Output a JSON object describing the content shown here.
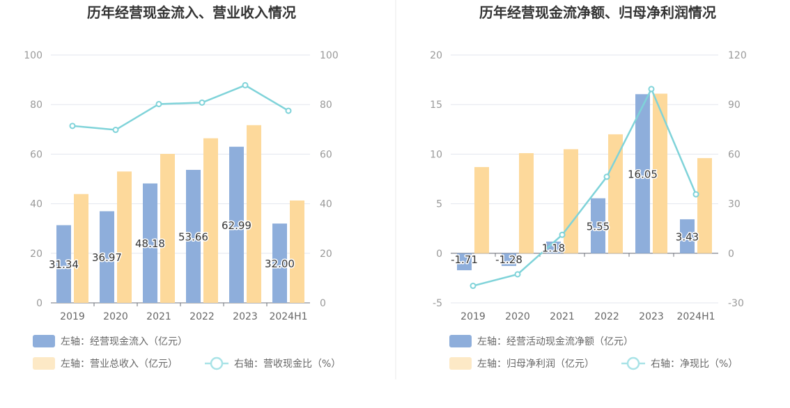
{
  "chart_data": [
    {
      "type": "bar",
      "title": "历年经营现金流入、营业收入情况",
      "categories": [
        "2019",
        "2020",
        "2021",
        "2022",
        "2023",
        "2024H1"
      ],
      "left_axis": {
        "min": 0,
        "max": 100,
        "ticks": [
          "0",
          "20",
          "40",
          "60",
          "80",
          "100"
        ]
      },
      "right_axis": {
        "min": 0,
        "max": 100,
        "ticks": [
          "0",
          "20",
          "40",
          "60",
          "80",
          "100"
        ]
      },
      "grid": true,
      "series": [
        {
          "name": "左轴：经营现金流入（亿元）",
          "kind": "bar",
          "axis": "left",
          "color": "#8eaedb",
          "values": [
            31.34,
            36.97,
            48.18,
            53.66,
            62.99,
            32.0
          ],
          "labels": [
            "31.34",
            "36.97",
            "48.18",
            "53.66",
            "62.99",
            "32.00"
          ]
        },
        {
          "name": "左轴：营业总收入（亿元）",
          "kind": "bar",
          "axis": "left",
          "color": "#fdd99b",
          "values": [
            43.9,
            53.0,
            60.1,
            66.4,
            71.7,
            41.3
          ]
        },
        {
          "name": "右轴：营收现金比（%）",
          "kind": "line",
          "axis": "right",
          "color": "#7fd3d9",
          "values": [
            71.4,
            69.8,
            80.2,
            80.8,
            87.8,
            77.5
          ]
        }
      ],
      "legend_position": "bottom"
    },
    {
      "type": "bar",
      "title": "历年经营现金流净额、归母净利润情况",
      "categories": [
        "2019",
        "2020",
        "2021",
        "2022",
        "2023",
        "2024H1"
      ],
      "left_axis": {
        "min": -5,
        "max": 20,
        "ticks": [
          "-5",
          "0",
          "5",
          "10",
          "15",
          "20"
        ]
      },
      "right_axis": {
        "min": -30,
        "max": 120,
        "ticks": [
          "-30",
          "0",
          "30",
          "60",
          "90",
          "120"
        ]
      },
      "grid": true,
      "series": [
        {
          "name": "左轴：经营活动现金流净额（亿元）",
          "kind": "bar",
          "axis": "left",
          "color": "#8eaedb",
          "values": [
            -1.71,
            -1.28,
            1.18,
            5.55,
            16.05,
            3.43
          ],
          "labels": [
            "-1.71",
            "-1.28",
            "1.18",
            "5.55",
            "16.05",
            "3.43"
          ]
        },
        {
          "name": "左轴：归母净利润（亿元）",
          "kind": "bar",
          "axis": "left",
          "color": "#fdd99b",
          "values": [
            8.7,
            10.1,
            10.5,
            12.0,
            16.1,
            9.6
          ]
        },
        {
          "name": "右轴：净现比（%）",
          "kind": "line",
          "axis": "right",
          "color": "#7fd3d9",
          "values": [
            -19.7,
            -12.7,
            11.2,
            46.3,
            99.4,
            35.7
          ]
        }
      ],
      "legend_position": "bottom"
    }
  ]
}
